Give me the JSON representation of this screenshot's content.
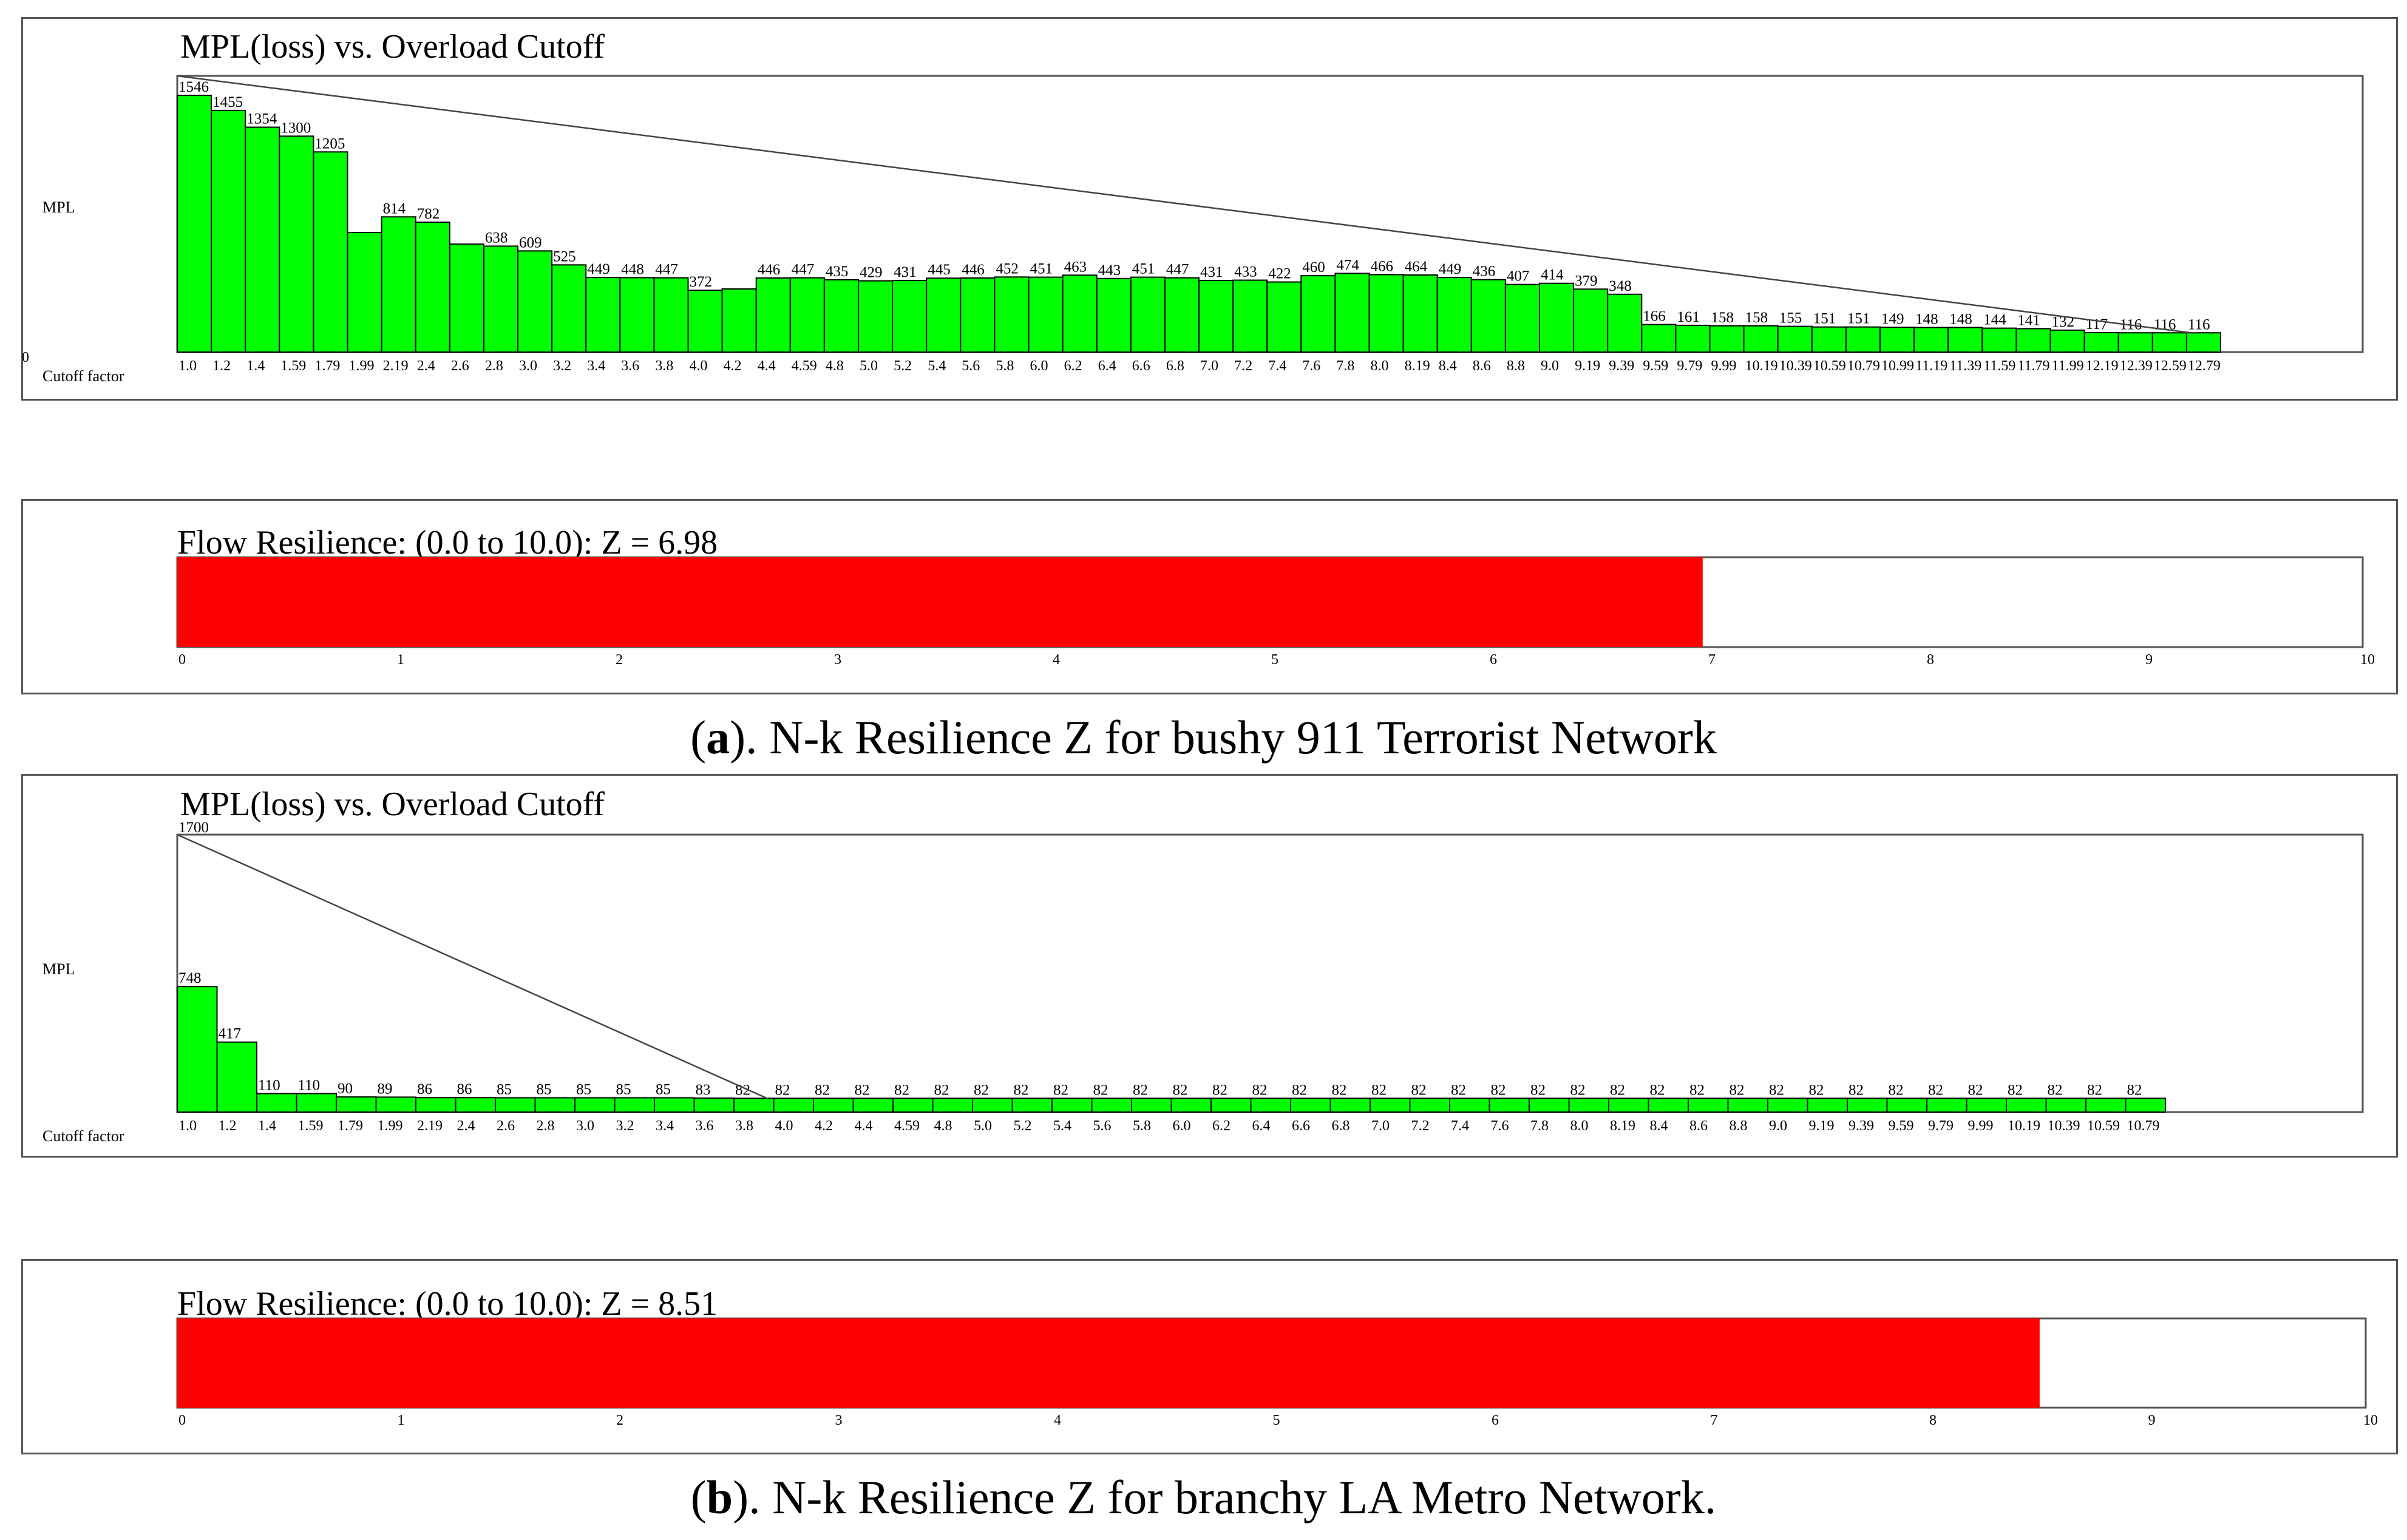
{
  "captions": [
    {
      "letter": "a",
      "prefix": "(",
      "text": "). N-k Resilience Z for bushy 911 Terrorist Network"
    },
    {
      "letter": "b",
      "prefix": "(",
      "text": "). N-k Resilience Z for branchy LA Metro Network."
    }
  ],
  "chart_data": [
    {
      "type": "bar",
      "title": "MPL(loss) vs. Overload Cutoff",
      "ylabel": "MPL",
      "xlabel": "Cutoff factor",
      "origin_label": "0",
      "color": "#00ff00",
      "ylim": [
        0,
        1546
      ],
      "categories": [
        "1.0",
        "1.2",
        "1.4",
        "1.59",
        "1.79",
        "1.99",
        "2.19",
        "2.4",
        "2.6",
        "2.8",
        "3.0",
        "3.2",
        "3.4",
        "3.6",
        "3.8",
        "4.0",
        "4.2",
        "4.4",
        "4.59",
        "4.8",
        "5.0",
        "5.2",
        "5.4",
        "5.6",
        "5.8",
        "6.0",
        "6.2",
        "6.4",
        "6.6",
        "6.8",
        "7.0",
        "7.2",
        "7.4",
        "7.6",
        "7.8",
        "8.0",
        "8.19",
        "8.4",
        "8.6",
        "8.8",
        "9.0",
        "9.19",
        "9.39",
        "9.59",
        "9.79",
        "9.99",
        "10.19",
        "10.39",
        "10.59",
        "10.79",
        "10.99",
        "11.19",
        "11.39",
        "11.59",
        "11.79",
        "11.99",
        "12.19",
        "12.39",
        "12.59",
        "12.79"
      ],
      "values": [
        1546,
        1455,
        1354,
        1300,
        1205,
        null,
        814,
        782,
        null,
        638,
        609,
        525,
        449,
        448,
        447,
        372,
        null,
        446,
        447,
        435,
        429,
        431,
        445,
        446,
        452,
        451,
        463,
        443,
        451,
        447,
        431,
        433,
        422,
        460,
        474,
        466,
        464,
        449,
        436,
        407,
        414,
        379,
        348,
        166,
        161,
        158,
        158,
        155,
        151,
        151,
        149,
        148,
        148,
        144,
        141,
        132,
        117,
        116,
        116,
        116
      ],
      "unlabeled_bar_values": {
        "5": 720,
        "8": 650,
        "16": 380
      },
      "note_line": "diagonal reference line from first bar top to last bar top"
    },
    {
      "type": "bar",
      "title": "Flow Resilience: (0.0 to 10.0): Z = 6.98",
      "value": 6.98,
      "xlim": [
        0,
        10
      ],
      "ticks": [
        "0",
        "1",
        "2",
        "3",
        "4",
        "5",
        "6",
        "7",
        "8",
        "9",
        "10"
      ],
      "color": "#ff0000"
    },
    {
      "type": "bar",
      "title": "MPL(loss) vs. Overload Cutoff",
      "ylabel": "MPL",
      "xlabel": "Cutoff factor",
      "color": "#00ff00",
      "ylim": [
        0,
        1700
      ],
      "categories": [
        "1.0",
        "1.2",
        "1.4",
        "1.59",
        "1.79",
        "1.99",
        "2.19",
        "2.4",
        "2.6",
        "2.8",
        "3.0",
        "3.2",
        "3.4",
        "3.6",
        "3.8",
        "4.0",
        "4.2",
        "4.4",
        "4.59",
        "4.8",
        "5.0",
        "5.2",
        "5.4",
        "5.6",
        "5.8",
        "6.0",
        "6.2",
        "6.4",
        "6.6",
        "6.8",
        "7.0",
        "7.2",
        "7.4",
        "7.6",
        "7.8",
        "8.0",
        "8.19",
        "8.4",
        "8.6",
        "8.8",
        "9.0",
        "9.19",
        "9.39",
        "9.59",
        "9.79",
        "9.99",
        "10.19",
        "10.39",
        "10.59",
        "10.79"
      ],
      "top_label": "1700",
      "values": [
        748,
        417,
        110,
        110,
        90,
        89,
        86,
        86,
        85,
        85,
        85,
        85,
        85,
        83,
        82,
        82,
        82,
        82,
        82,
        82,
        82,
        82,
        82,
        82,
        82,
        82,
        82,
        82,
        82,
        82,
        82,
        82,
        82,
        82,
        82,
        82,
        82,
        82,
        82,
        82,
        82,
        82,
        82,
        82,
        82,
        82,
        82,
        82,
        82,
        82
      ]
    },
    {
      "type": "bar",
      "title": "Flow Resilience: (0.0 to 10.0): Z = 8.51",
      "value": 8.51,
      "xlim": [
        0,
        10
      ],
      "ticks": [
        "0",
        "1",
        "2",
        "3",
        "4",
        "5",
        "6",
        "7",
        "8",
        "9",
        "10"
      ],
      "color": "#ff0000"
    }
  ]
}
